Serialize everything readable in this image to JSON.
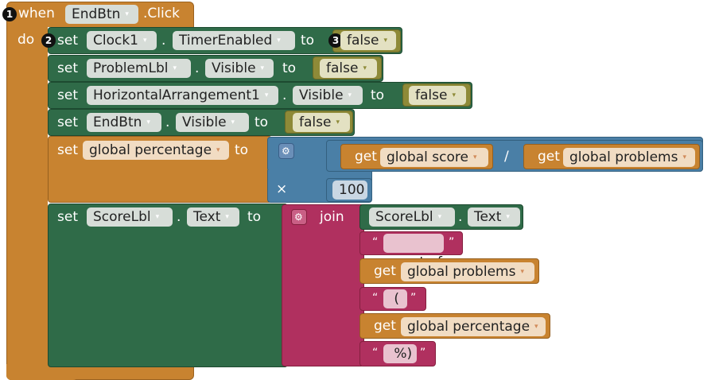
{
  "badges": [
    "1",
    "2",
    "3"
  ],
  "event": {
    "when_label": "when",
    "component": "EndBtn",
    "event_name": ".Click",
    "do_label": "do"
  },
  "keywords": {
    "set": "set",
    "to": "to",
    "dot": ".",
    "get": "get",
    "join": "join",
    "divide": "/",
    "times": "×",
    "gear_icon": "gear-icon"
  },
  "statements": [
    {
      "component": "Clock1",
      "property": "TimerEnabled",
      "value": "false"
    },
    {
      "component": "ProblemLbl",
      "property": "Visible",
      "value": "false"
    },
    {
      "component": "HorizontalArrangement1",
      "property": "Visible",
      "value": "false"
    },
    {
      "component": "EndBtn",
      "property": "Visible",
      "value": "false"
    }
  ],
  "percentage": {
    "variable": "global percentage",
    "numerator": "global score",
    "denominator": "global problems",
    "multiplier": "100"
  },
  "score": {
    "component": "ScoreLbl",
    "property": "Text",
    "join_component": "ScoreLbl",
    "join_property": "Text",
    "text1": " out of ",
    "get1": "global problems",
    "text2": " ( ",
    "get2": "global percentage",
    "text3": " %) "
  },
  "colors": {
    "event": "#c88330",
    "setter": "#2f6b48",
    "math": "#4a7fa6",
    "text": "#b0305f",
    "variable": "#c88330",
    "logic": "#8e8a38"
  }
}
